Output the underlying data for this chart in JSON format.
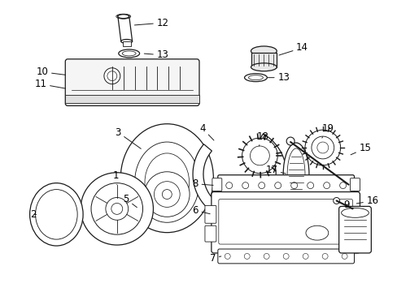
{
  "bg_color": "#ffffff",
  "line_color": "#1a1a1a",
  "text_color": "#000000",
  "fig_width": 4.89,
  "fig_height": 3.6,
  "dpi": 100
}
